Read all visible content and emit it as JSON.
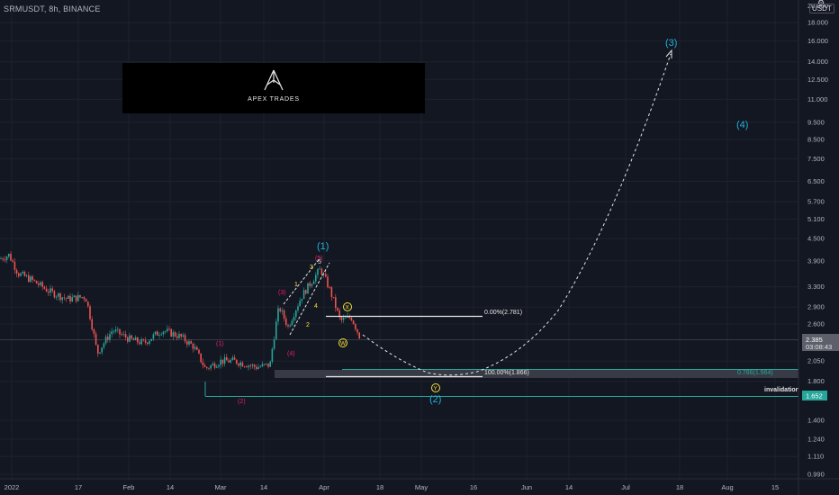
{
  "header": {
    "title": "SRMUSDT, 8h, BINANCE",
    "currency": "USDT"
  },
  "logo": {
    "text": "APEX TRADES"
  },
  "chart_data": {
    "type": "candlestick",
    "price_axis": {
      "scale": "log",
      "ticks": [
        "20.000",
        "18.000",
        "16.000",
        "14.000",
        "12.500",
        "11.000",
        "9.500",
        "8.500",
        "7.500",
        "6.500",
        "5.700",
        "5.100",
        "4.500",
        "3.900",
        "3.300",
        "2.900",
        "2.600",
        "2.385",
        "2.050",
        "1.800",
        "1.652",
        "1.400",
        "1.240",
        "1.110",
        "0.990"
      ],
      "current_price": "2.385",
      "countdown": "03:08:43",
      "current_price_color": "#787b86"
    },
    "time_axis": {
      "ticks": [
        "2022",
        "17",
        "Feb",
        "14",
        "Mar",
        "14",
        "Apr",
        "18",
        "May",
        "16",
        "Jun",
        "14",
        "Jul",
        "18",
        "Aug",
        "15"
      ]
    },
    "levels": [
      {
        "label": "0.00%(2.781)",
        "price": 2.781
      },
      {
        "label": "100.00%(1.866)",
        "price": 1.866
      },
      {
        "label": "0.786(1.964)",
        "price": 1.964
      },
      {
        "label": "invalidation",
        "price": 1.652,
        "axis_label": "1.652",
        "color": "#26a69a"
      }
    ],
    "wave_labels": {
      "major": [
        "(1)",
        "(2)",
        "(3)",
        "(4)"
      ],
      "minor_red": [
        "(1)",
        "(2)",
        "(3)",
        "(4)",
        "(5)"
      ],
      "sub_white": [
        "1",
        "2",
        "3",
        "4",
        "5"
      ],
      "correction": [
        "W",
        "X",
        "Y"
      ]
    },
    "colors": {
      "up": "#26a69a",
      "down": "#ef5350",
      "major_wave": "#22b0d8",
      "minor_wave": "#e91e63",
      "correction": "#f5e13a"
    }
  }
}
